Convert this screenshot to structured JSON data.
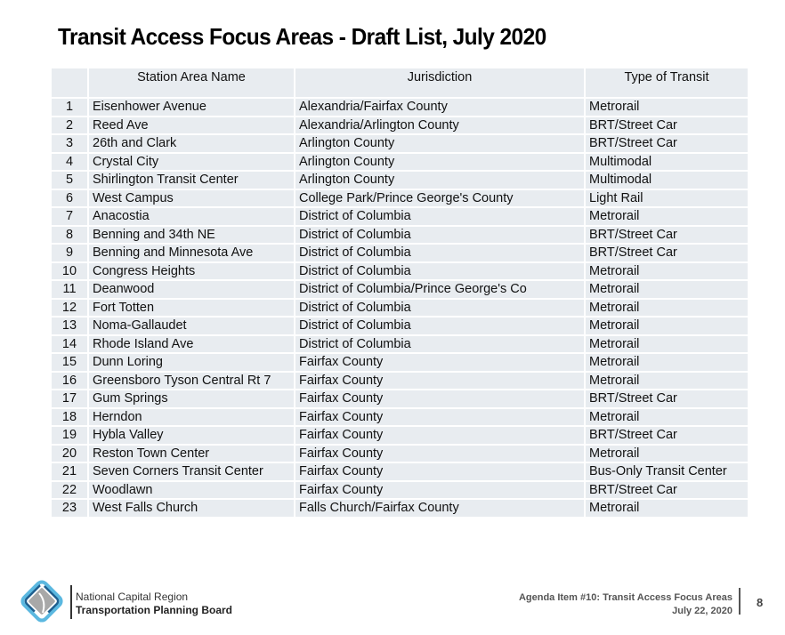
{
  "slide": {
    "title": "Transit Access Focus Areas - Draft List, July 2020"
  },
  "table": {
    "headers": [
      "",
      "Station Area Name",
      "Jurisdiction",
      "Type of Transit"
    ],
    "rows": [
      {
        "num": "1",
        "name": "Eisenhower Avenue",
        "jurisdiction": "Alexandria/Fairfax County",
        "type": "Metrorail"
      },
      {
        "num": "2",
        "name": "Reed Ave",
        "jurisdiction": "Alexandria/Arlington County",
        "type": "BRT/Street Car"
      },
      {
        "num": "3",
        "name": "26th and Clark",
        "jurisdiction": "Arlington County",
        "type": "BRT/Street Car"
      },
      {
        "num": "4",
        "name": "Crystal City",
        "jurisdiction": "Arlington County",
        "type": "Multimodal"
      },
      {
        "num": "5",
        "name": "Shirlington Transit Center",
        "jurisdiction": "Arlington County",
        "type": "Multimodal"
      },
      {
        "num": "6",
        "name": "West Campus",
        "jurisdiction": "College Park/Prince George's County",
        "type": "Light Rail"
      },
      {
        "num": "7",
        "name": "Anacostia",
        "jurisdiction": "District of Columbia",
        "type": "Metrorail"
      },
      {
        "num": "8",
        "name": "Benning and 34th NE",
        "jurisdiction": "District of Columbia",
        "type": "BRT/Street Car"
      },
      {
        "num": "9",
        "name": "Benning and Minnesota Ave",
        "jurisdiction": "District of Columbia",
        "type": "BRT/Street Car"
      },
      {
        "num": "10",
        "name": "Congress Heights",
        "jurisdiction": "District of Columbia",
        "type": "Metrorail"
      },
      {
        "num": "11",
        "name": "Deanwood",
        "jurisdiction": "District of Columbia/Prince George's Co",
        "type": "Metrorail"
      },
      {
        "num": "12",
        "name": "Fort Totten",
        "jurisdiction": "District of Columbia",
        "type": "Metrorail"
      },
      {
        "num": "13",
        "name": "Noma-Gallaudet",
        "jurisdiction": "District of Columbia",
        "type": "Metrorail"
      },
      {
        "num": "14",
        "name": "Rhode Island Ave",
        "jurisdiction": "District of Columbia",
        "type": "Metrorail"
      },
      {
        "num": "15",
        "name": "Dunn Loring",
        "jurisdiction": "Fairfax County",
        "type": "Metrorail"
      },
      {
        "num": "16",
        "name": "Greensboro Tyson Central Rt 7",
        "jurisdiction": "Fairfax County",
        "type": "Metrorail"
      },
      {
        "num": "17",
        "name": "Gum Springs",
        "jurisdiction": "Fairfax County",
        "type": "BRT/Street Car"
      },
      {
        "num": "18",
        "name": "Herndon",
        "jurisdiction": "Fairfax County",
        "type": "Metrorail"
      },
      {
        "num": "19",
        "name": "Hybla Valley",
        "jurisdiction": "Fairfax County",
        "type": "BRT/Street Car"
      },
      {
        "num": "20",
        "name": "Reston Town Center",
        "jurisdiction": "Fairfax County",
        "type": "Metrorail"
      },
      {
        "num": "21",
        "name": "Seven Corners Transit Center",
        "jurisdiction": "Fairfax County",
        "type": "Bus-Only Transit Center"
      },
      {
        "num": "22",
        "name": "Woodlawn",
        "jurisdiction": "Fairfax County",
        "type": "BRT/Street Car"
      },
      {
        "num": "23",
        "name": "West Falls Church",
        "jurisdiction": "Falls Church/Fairfax County",
        "type": "Metrorail"
      }
    ]
  },
  "footer": {
    "logo_icon": "tpb-diamond-logo-icon",
    "org_line1": "National Capital Region",
    "org_line2": "Transportation Planning Board",
    "agenda_line1": "Agenda Item #10: Transit Access Focus Areas",
    "agenda_line2": "July 22, 2020",
    "page_number": "8"
  },
  "colors": {
    "table_cell_bg": "#e8ecf0",
    "logo_light_blue": "#5bb8e0",
    "logo_dark_blue": "#1f5f8f",
    "logo_gray": "#a8a8a8"
  }
}
